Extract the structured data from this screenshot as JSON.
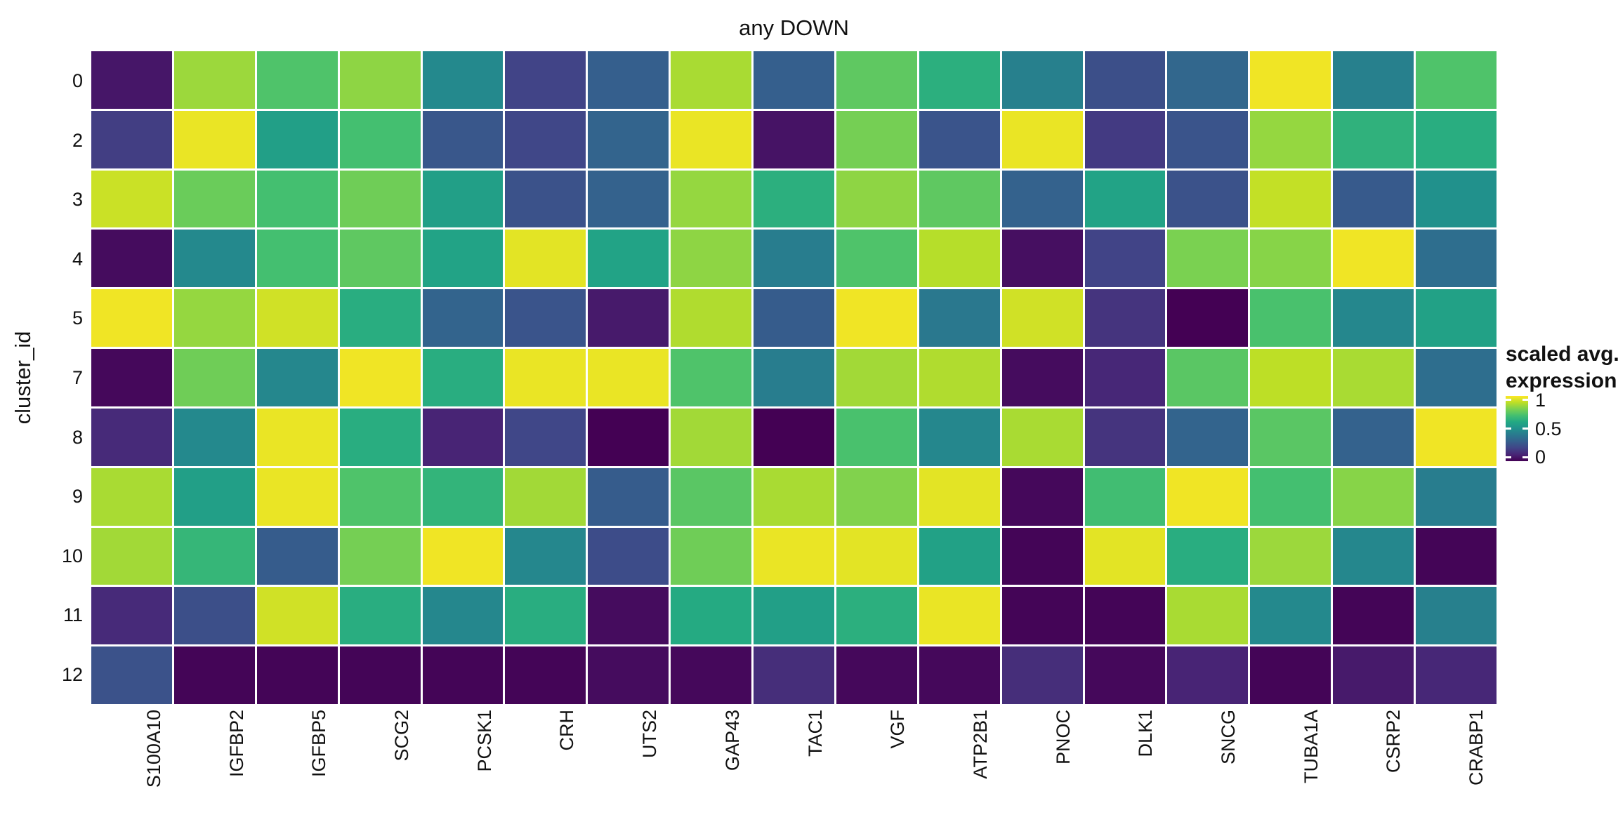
{
  "figure": {
    "title": "any DOWN"
  },
  "y_axis_title": "cluster_id",
  "legend": {
    "title_line1": "scaled avg.",
    "title_line2": "expression",
    "tick_labels": [
      "1",
      "0.5",
      "0"
    ],
    "tick_values": [
      1,
      0.5,
      0
    ]
  },
  "chart_data": {
    "type": "heatmap",
    "title": "any DOWN",
    "xlabel": "",
    "ylabel": "cluster_id",
    "x_categories": [
      "S100A10",
      "IGFBP2",
      "IGFBP5",
      "SCG2",
      "PCSK1",
      "CRH",
      "UTS2",
      "GAP43",
      "TAC1",
      "VGF",
      "ATP2B1",
      "PNOC",
      "DLK1",
      "SNCG",
      "TUBA1A",
      "CSRP2",
      "CRABP1"
    ],
    "y_categories": [
      "0",
      "2",
      "3",
      "4",
      "5",
      "7",
      "8",
      "9",
      "10",
      "11",
      "12"
    ],
    "x_label_rotation_deg": 90,
    "value_domain": [
      0,
      1
    ],
    "colormap": "viridis",
    "legend_title": "scaled avg. expression",
    "legend_ticks": [
      1,
      0.5,
      0
    ],
    "grid": false,
    "tile_border_color": "#ffffff",
    "background_color": "#ffffff",
    "text_color": "#111111",
    "viridis_stops": [
      "#440154",
      "#482475",
      "#414487",
      "#355f8d",
      "#2a788e",
      "#21918c",
      "#22a884",
      "#44bf70",
      "#7ad151",
      "#bddf26",
      "#fde725"
    ],
    "values": [
      [
        0.06,
        0.85,
        0.72,
        0.83,
        0.47,
        0.2,
        0.3,
        0.87,
        0.3,
        0.75,
        0.63,
        0.43,
        0.24,
        0.33,
        0.98,
        0.43,
        0.72
      ],
      [
        0.18,
        0.97,
        0.56,
        0.7,
        0.27,
        0.21,
        0.32,
        0.97,
        0.05,
        0.79,
        0.26,
        0.97,
        0.17,
        0.26,
        0.84,
        0.64,
        0.62
      ],
      [
        0.92,
        0.77,
        0.7,
        0.78,
        0.56,
        0.25,
        0.31,
        0.84,
        0.63,
        0.83,
        0.75,
        0.31,
        0.58,
        0.25,
        0.91,
        0.28,
        0.5
      ],
      [
        0.03,
        0.47,
        0.7,
        0.75,
        0.58,
        0.96,
        0.58,
        0.83,
        0.42,
        0.72,
        0.89,
        0.04,
        0.2,
        0.8,
        0.82,
        0.98,
        0.36
      ],
      [
        0.98,
        0.84,
        0.93,
        0.62,
        0.32,
        0.26,
        0.07,
        0.88,
        0.29,
        0.98,
        0.4,
        0.93,
        0.15,
        0.0,
        0.71,
        0.46,
        0.57
      ],
      [
        0.02,
        0.78,
        0.46,
        0.98,
        0.62,
        0.97,
        0.97,
        0.72,
        0.42,
        0.86,
        0.88,
        0.03,
        0.11,
        0.74,
        0.9,
        0.87,
        0.36
      ],
      [
        0.12,
        0.47,
        0.97,
        0.62,
        0.1,
        0.21,
        0.0,
        0.86,
        0.0,
        0.71,
        0.46,
        0.87,
        0.15,
        0.32,
        0.74,
        0.31,
        0.98
      ],
      [
        0.87,
        0.56,
        0.97,
        0.72,
        0.65,
        0.86,
        0.29,
        0.74,
        0.87,
        0.81,
        0.96,
        0.02,
        0.69,
        0.98,
        0.7,
        0.82,
        0.42
      ],
      [
        0.86,
        0.66,
        0.29,
        0.79,
        0.98,
        0.46,
        0.23,
        0.78,
        0.97,
        0.96,
        0.57,
        0.01,
        0.96,
        0.62,
        0.85,
        0.46,
        0.01
      ],
      [
        0.12,
        0.24,
        0.93,
        0.62,
        0.46,
        0.62,
        0.03,
        0.61,
        0.56,
        0.63,
        0.97,
        0.01,
        0.01,
        0.87,
        0.47,
        0.01,
        0.43
      ],
      [
        0.25,
        0.01,
        0.01,
        0.01,
        0.01,
        0.01,
        0.03,
        0.02,
        0.13,
        0.02,
        0.02,
        0.13,
        0.02,
        0.1,
        0.01,
        0.07,
        0.11
      ]
    ]
  }
}
